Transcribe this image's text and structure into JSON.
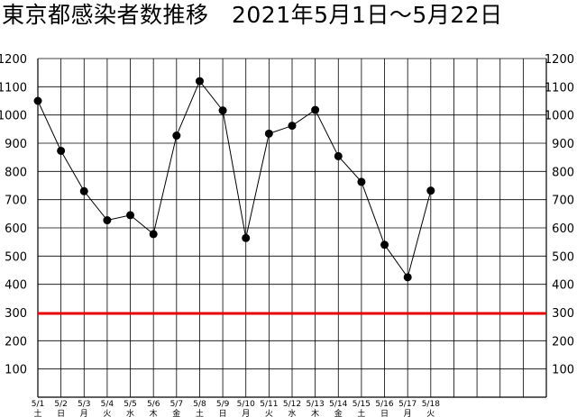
{
  "title": "東京都感染者数推移　2021年5月1日～5月22日",
  "chart_data": {
    "type": "line",
    "title": "東京都感染者数推移　2021年5月1日～5月22日",
    "x": [
      "5/1",
      "5/2",
      "5/3",
      "5/4",
      "5/5",
      "5/6",
      "5/7",
      "5/8",
      "5/9",
      "5/10",
      "5/11",
      "5/12",
      "5/13",
      "5/14",
      "5/15",
      "5/16",
      "5/17",
      "5/18"
    ],
    "weekdays": [
      "土",
      "日",
      "月",
      "火",
      "水",
      "木",
      "金",
      "土",
      "日",
      "月",
      "火",
      "水",
      "木",
      "金",
      "土",
      "日",
      "月",
      "火"
    ],
    "series": [
      {
        "values": [
          1050,
          873,
          730,
          627,
          645,
          578,
          927,
          1120,
          1016,
          564,
          934,
          962,
          1018,
          854,
          763,
          540,
          425,
          732
        ]
      }
    ],
    "yticks": [
      100,
      200,
      300,
      400,
      500,
      600,
      700,
      800,
      900,
      1000,
      1100,
      1200
    ],
    "ylim": [
      0,
      1200
    ],
    "reference_line": {
      "value": 300,
      "label": "300",
      "color": "#e60000"
    },
    "grid": true,
    "total_slots": 22,
    "line_color": "#000000"
  }
}
